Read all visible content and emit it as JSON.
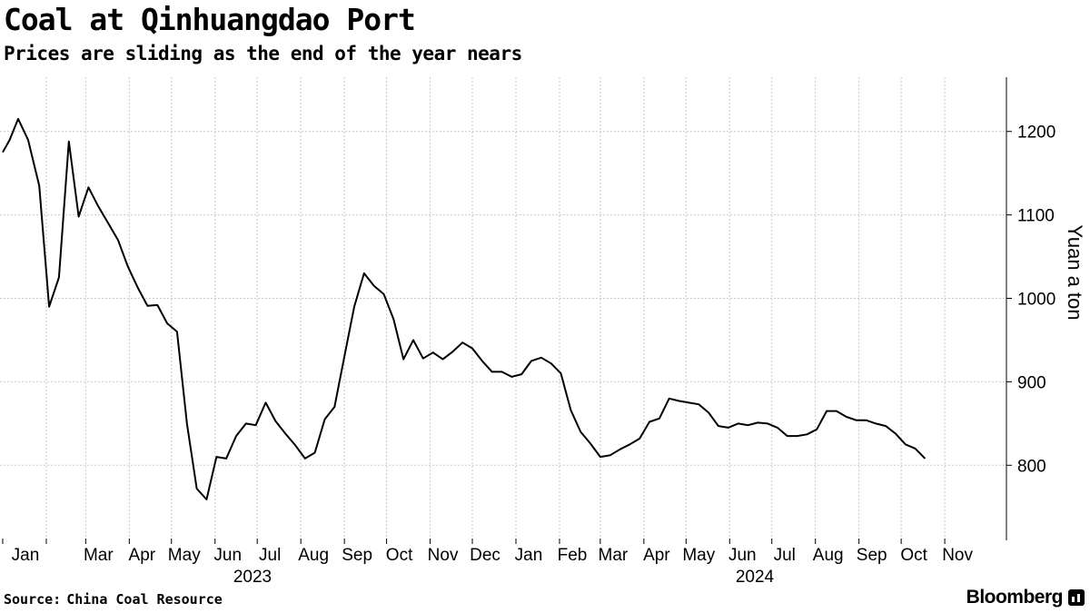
{
  "chart_data": {
    "type": "line",
    "title": "Coal at Qinhuangdao Port",
    "subtitle": "Prices are sliding as the end of the year nears",
    "ylabel": "Yuan a ton",
    "xlabel": "",
    "ylim": [
      710,
      1265
    ],
    "y_ticks": [
      800,
      900,
      1000,
      1100,
      1200
    ],
    "grid": true,
    "y_axis_side": "right",
    "x_month_labels": [
      "Jan",
      "Mar",
      "Apr",
      "May",
      "Jun",
      "Jul",
      "Aug",
      "Sep",
      "Oct",
      "Nov",
      "Dec",
      "Jan",
      "Feb",
      "Mar",
      "Apr",
      "May",
      "Jun",
      "Jul",
      "Aug",
      "Sep",
      "Oct",
      "Nov"
    ],
    "x_year_labels": [
      "2023",
      "2024"
    ],
    "series": [
      {
        "name": "",
        "color": "#000000",
        "points": [
          [
            "2023-01-01",
            1175
          ],
          [
            "2023-01-06",
            1190
          ],
          [
            "2023-01-12",
            1215
          ],
          [
            "2023-01-19",
            1190
          ],
          [
            "2023-01-27",
            1135
          ],
          [
            "2023-02-03",
            990
          ],
          [
            "2023-02-10",
            1025
          ],
          [
            "2023-02-17",
            1188
          ],
          [
            "2023-02-24",
            1098
          ],
          [
            "2023-03-03",
            1133
          ],
          [
            "2023-03-10",
            1110
          ],
          [
            "2023-03-17",
            1090
          ],
          [
            "2023-03-24",
            1070
          ],
          [
            "2023-03-31",
            1038
          ],
          [
            "2023-04-07",
            1013
          ],
          [
            "2023-04-14",
            991
          ],
          [
            "2023-04-21",
            992
          ],
          [
            "2023-04-28",
            970
          ],
          [
            "2023-05-05",
            960
          ],
          [
            "2023-05-12",
            850
          ],
          [
            "2023-05-19",
            772
          ],
          [
            "2023-05-26",
            759
          ],
          [
            "2023-06-02",
            810
          ],
          [
            "2023-06-09",
            808
          ],
          [
            "2023-06-16",
            835
          ],
          [
            "2023-06-23",
            850
          ],
          [
            "2023-06-30",
            848
          ],
          [
            "2023-07-07",
            875
          ],
          [
            "2023-07-14",
            853
          ],
          [
            "2023-07-21",
            838
          ],
          [
            "2023-07-28",
            824
          ],
          [
            "2023-08-04",
            808
          ],
          [
            "2023-08-11",
            815
          ],
          [
            "2023-08-18",
            855
          ],
          [
            "2023-08-25",
            870
          ],
          [
            "2023-09-01",
            930
          ],
          [
            "2023-09-08",
            990
          ],
          [
            "2023-09-15",
            1030
          ],
          [
            "2023-09-22",
            1015
          ],
          [
            "2023-09-29",
            1005
          ],
          [
            "2023-10-06",
            975
          ],
          [
            "2023-10-13",
            927
          ],
          [
            "2023-10-20",
            950
          ],
          [
            "2023-10-27",
            928
          ],
          [
            "2023-11-03",
            935
          ],
          [
            "2023-11-10",
            927
          ],
          [
            "2023-11-17",
            936
          ],
          [
            "2023-11-24",
            947
          ],
          [
            "2023-12-01",
            940
          ],
          [
            "2023-12-08",
            925
          ],
          [
            "2023-12-15",
            912
          ],
          [
            "2023-12-22",
            912
          ],
          [
            "2023-12-29",
            906
          ],
          [
            "2024-01-05",
            909
          ],
          [
            "2024-01-12",
            925
          ],
          [
            "2024-01-19",
            929
          ],
          [
            "2024-01-26",
            922
          ],
          [
            "2024-02-02",
            910
          ],
          [
            "2024-02-09",
            866
          ],
          [
            "2024-02-16",
            840
          ],
          [
            "2024-02-23",
            826
          ],
          [
            "2024-03-01",
            810
          ],
          [
            "2024-03-08",
            812
          ],
          [
            "2024-03-15",
            819
          ],
          [
            "2024-03-22",
            825
          ],
          [
            "2024-03-29",
            832
          ],
          [
            "2024-04-05",
            852
          ],
          [
            "2024-04-12",
            856
          ],
          [
            "2024-04-19",
            880
          ],
          [
            "2024-04-26",
            877
          ],
          [
            "2024-05-03",
            875
          ],
          [
            "2024-05-10",
            873
          ],
          [
            "2024-05-17",
            863
          ],
          [
            "2024-05-24",
            847
          ],
          [
            "2024-05-31",
            845
          ],
          [
            "2024-06-07",
            850
          ],
          [
            "2024-06-14",
            848
          ],
          [
            "2024-06-21",
            851
          ],
          [
            "2024-06-28",
            850
          ],
          [
            "2024-07-05",
            845
          ],
          [
            "2024-07-12",
            835
          ],
          [
            "2024-07-19",
            835
          ],
          [
            "2024-07-26",
            837
          ],
          [
            "2024-08-02",
            843
          ],
          [
            "2024-08-09",
            865
          ],
          [
            "2024-08-16",
            865
          ],
          [
            "2024-08-23",
            858
          ],
          [
            "2024-08-30",
            854
          ],
          [
            "2024-09-06",
            854
          ],
          [
            "2024-09-13",
            850
          ],
          [
            "2024-09-20",
            847
          ],
          [
            "2024-09-27",
            838
          ],
          [
            "2024-10-04",
            825
          ],
          [
            "2024-10-11",
            820
          ],
          [
            "2024-10-18",
            808
          ]
        ]
      }
    ]
  },
  "footer": {
    "source_label": "Source:",
    "source_value": "China Coal Resource",
    "brand": "Bloomberg"
  }
}
